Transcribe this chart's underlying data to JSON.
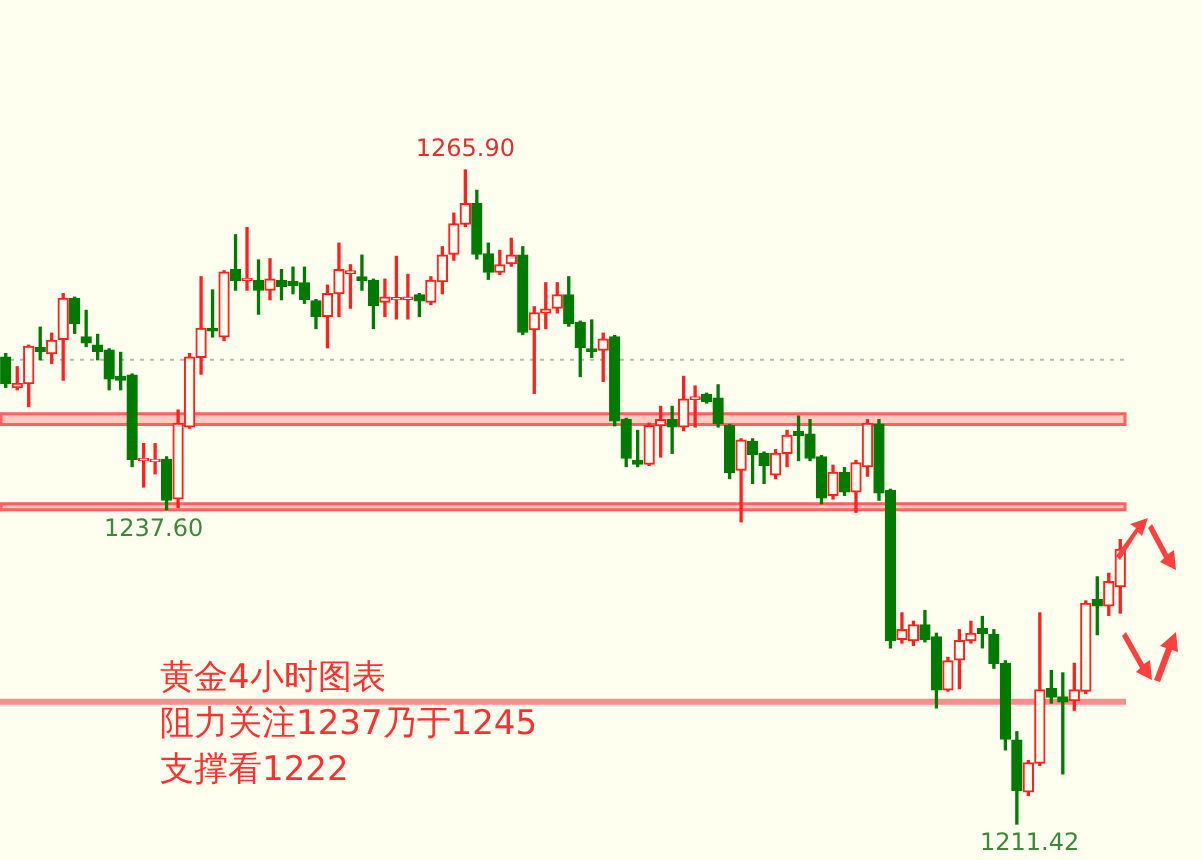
{
  "chart_data": {
    "type": "candlestick",
    "title": "黄金4小时图表",
    "annotations": [
      "阻力关注1237乃于1245",
      "支撑看1222",
      {
        "text": "1265.90",
        "y": 1265.9
      },
      "1237.60",
      "1211.42"
    ],
    "categories": [
      null,
      null,
      null,
      null,
      null,
      null,
      null,
      null,
      null,
      null,
      null,
      null,
      null,
      null,
      null,
      null,
      null,
      null,
      null,
      null,
      null,
      null,
      null,
      null,
      null,
      null,
      null,
      null,
      null,
      null,
      null,
      null,
      null,
      null,
      null,
      null,
      null,
      null,
      null,
      null,
      null,
      null,
      null,
      null,
      null,
      null,
      null,
      null,
      null,
      null,
      null,
      null,
      null,
      null,
      null,
      null,
      null,
      null,
      null,
      null,
      null,
      null,
      null,
      null,
      null,
      null,
      null,
      null,
      null,
      null,
      null,
      null,
      null,
      null,
      null,
      null,
      null,
      null,
      null,
      null,
      null,
      null,
      null,
      null,
      null,
      null,
      null,
      null,
      null,
      null,
      null,
      null,
      null,
      null,
      null,
      null,
      null,
      null
    ],
    "ohlc": [
      [
        1250.3,
        1250.6,
        1247.8,
        1248.1
      ],
      [
        1247.8,
        1249.5,
        1247.6,
        1248.1
      ],
      [
        1248.1,
        1251.3,
        1246.2,
        1251.2
      ],
      [
        1251.1,
        1252.8,
        1250.1,
        1250.8
      ],
      [
        1250.6,
        1252.3,
        1249.8,
        1251.7
      ],
      [
        1251.8,
        1255.6,
        1248.4,
        1255.2
      ],
      [
        1255.2,
        1255.3,
        1252.3,
        1253.1
      ],
      [
        1252.0,
        1254.2,
        1251.2,
        1251.5
      ],
      [
        1251.3,
        1252.2,
        1250.1,
        1250.8
      ],
      [
        1250.9,
        1251.0,
        1247.6,
        1248.5
      ],
      [
        1248.7,
        1250.7,
        1247.6,
        1248.4
      ],
      [
        1248.8,
        1248.9,
        1241.2,
        1241.8
      ],
      [
        1241.7,
        1243.1,
        1239.5,
        1241.7
      ],
      [
        1241.6,
        1243.1,
        1240.6,
        1241.8
      ],
      [
        1241.8,
        1242.0,
        1237.6,
        1238.4
      ],
      [
        1238.5,
        1245.9,
        1237.8,
        1244.8
      ],
      [
        1244.5,
        1250.6,
        1244.4,
        1250.3
      ],
      [
        1250.3,
        1257.0,
        1248.9,
        1252.7
      ],
      [
        1252.7,
        1255.9,
        1252.0,
        1252.5
      ],
      [
        1252.0,
        1257.5,
        1251.7,
        1257.4
      ],
      [
        1257.6,
        1260.5,
        1255.9,
        1256.7
      ],
      [
        1256.7,
        1261.1,
        1255.9,
        1256.8
      ],
      [
        1256.7,
        1258.4,
        1253.9,
        1255.9
      ],
      [
        1255.9,
        1258.5,
        1255.1,
        1256.8
      ],
      [
        1256.7,
        1257.6,
        1255.1,
        1256.2
      ],
      [
        1256.6,
        1257.8,
        1255.6,
        1256.3
      ],
      [
        1256.5,
        1257.8,
        1254.8,
        1255.1
      ],
      [
        1255.0,
        1255.1,
        1252.7,
        1253.7
      ],
      [
        1253.7,
        1256.3,
        1251.1,
        1255.6
      ],
      [
        1255.6,
        1259.8,
        1253.7,
        1257.6
      ],
      [
        1257.3,
        1258.0,
        1254.4,
        1257.5
      ],
      [
        1257.0,
        1258.8,
        1255.9,
        1256.7
      ],
      [
        1256.7,
        1256.8,
        1252.7,
        1254.6
      ],
      [
        1254.9,
        1256.8,
        1253.7,
        1255.3
      ],
      [
        1255.1,
        1258.7,
        1253.5,
        1255.2
      ],
      [
        1255.1,
        1257.2,
        1253.5,
        1255.3
      ],
      [
        1255.5,
        1255.6,
        1253.7,
        1255.0
      ],
      [
        1254.9,
        1257.0,
        1254.7,
        1256.7
      ],
      [
        1256.6,
        1259.5,
        1255.6,
        1258.8
      ],
      [
        1258.9,
        1262.3,
        1258.4,
        1261.4
      ],
      [
        1261.4,
        1265.9,
        1261.2,
        1263.1
      ],
      [
        1263.1,
        1264.2,
        1258.5,
        1258.9
      ],
      [
        1258.9,
        1259.8,
        1256.8,
        1257.4
      ],
      [
        1257.4,
        1259.2,
        1257.2,
        1258.0
      ],
      [
        1258.1,
        1260.2,
        1257.9,
        1258.8
      ],
      [
        1258.8,
        1259.5,
        1252.2,
        1252.4
      ],
      [
        1252.6,
        1254.5,
        1247.3,
        1254.0
      ],
      [
        1254.0,
        1256.5,
        1252.7,
        1254.3
      ],
      [
        1254.4,
        1256.5,
        1254.0,
        1255.5
      ],
      [
        1255.5,
        1257.0,
        1252.9,
        1253.1
      ],
      [
        1253.2,
        1253.3,
        1248.7,
        1251.1
      ],
      [
        1251.0,
        1253.4,
        1250.3,
        1250.8
      ],
      [
        1250.9,
        1252.3,
        1248.3,
        1251.8
      ],
      [
        1252.0,
        1252.1,
        1244.6,
        1245.0
      ],
      [
        1245.1,
        1245.2,
        1241.2,
        1241.9
      ],
      [
        1241.7,
        1244.2,
        1241.2,
        1241.4
      ],
      [
        1241.4,
        1244.8,
        1241.3,
        1244.6
      ],
      [
        1244.6,
        1246.2,
        1242.0,
        1245.1
      ],
      [
        1245.1,
        1246.2,
        1242.3,
        1244.5
      ],
      [
        1244.5,
        1248.7,
        1244.2,
        1246.8
      ],
      [
        1246.8,
        1247.9,
        1244.5,
        1247.0
      ],
      [
        1247.2,
        1247.3,
        1246.5,
        1246.6
      ],
      [
        1246.9,
        1248.0,
        1244.5,
        1244.8
      ],
      [
        1244.6,
        1244.7,
        1240.2,
        1240.7
      ],
      [
        1240.9,
        1243.5,
        1236.6,
        1243.4
      ],
      [
        1243.3,
        1243.5,
        1239.8,
        1242.2
      ],
      [
        1242.3,
        1242.4,
        1239.8,
        1241.3
      ],
      [
        1240.5,
        1242.6,
        1240.2,
        1242.3
      ],
      [
        1242.3,
        1244.2,
        1241.2,
        1243.8
      ],
      [
        1244.1,
        1245.4,
        1241.7,
        1243.8
      ],
      [
        1243.9,
        1245.1,
        1241.7,
        1241.9
      ],
      [
        1242.0,
        1242.1,
        1238.1,
        1238.6
      ],
      [
        1238.8,
        1241.3,
        1238.5,
        1240.7
      ],
      [
        1240.7,
        1241.1,
        1238.8,
        1239.1
      ],
      [
        1239.1,
        1241.7,
        1237.4,
        1241.5
      ],
      [
        1241.2,
        1245.1,
        1240.4,
        1244.8
      ],
      [
        1244.7,
        1245.1,
        1238.4,
        1239.0
      ],
      [
        1239.2,
        1239.3,
        1226.1,
        1226.7
      ],
      [
        1226.8,
        1229.0,
        1226.5,
        1227.6
      ],
      [
        1226.7,
        1228.3,
        1226.3,
        1228.0
      ],
      [
        1228.0,
        1229.2,
        1226.6,
        1226.8
      ],
      [
        1227.0,
        1227.3,
        1221.1,
        1222.6
      ],
      [
        1222.6,
        1225.3,
        1222.5,
        1225.0
      ],
      [
        1225.1,
        1227.6,
        1222.7,
        1226.7
      ],
      [
        1226.7,
        1228.3,
        1226.5,
        1227.3
      ],
      [
        1227.7,
        1228.7,
        1226.1,
        1227.3
      ],
      [
        1227.2,
        1227.6,
        1224.4,
        1224.8
      ],
      [
        1224.8,
        1225.0,
        1217.6,
        1218.5
      ],
      [
        1218.4,
        1219.1,
        1211.42,
        1214.2
      ],
      [
        1214.1,
        1216.7,
        1213.8,
        1216.5
      ],
      [
        1216.5,
        1229.0,
        1216.3,
        1222.6
      ],
      [
        1222.7,
        1224.2,
        1221.5,
        1222.0
      ],
      [
        1222.0,
        1224.0,
        1215.6,
        1221.6
      ],
      [
        1221.7,
        1224.8,
        1220.9,
        1222.6
      ],
      [
        1222.5,
        1230.0,
        1222.3,
        1229.8
      ],
      [
        1230.1,
        1232.0,
        1227.2,
        1229.6
      ],
      [
        1229.6,
        1232.3,
        1228.8,
        1231.6
      ],
      [
        1231.2,
        1235.1,
        1229.0,
        1234.3
      ]
    ],
    "ref_lines": [
      {
        "axis": "y",
        "value": 1250.1,
        "color": "#b8b8b8",
        "line_style": "dotted"
      },
      {
        "axis": "y",
        "value": 1221.6,
        "color": "#ff8c8c"
      }
    ],
    "bands": [
      {
        "axis": "y",
        "from": 1237.6,
        "to": 1238.1,
        "color": "#ff6060"
      },
      {
        "axis": "y",
        "from": 1244.7,
        "to": 1245.6,
        "color": "#ff6060"
      }
    ]
  }
}
